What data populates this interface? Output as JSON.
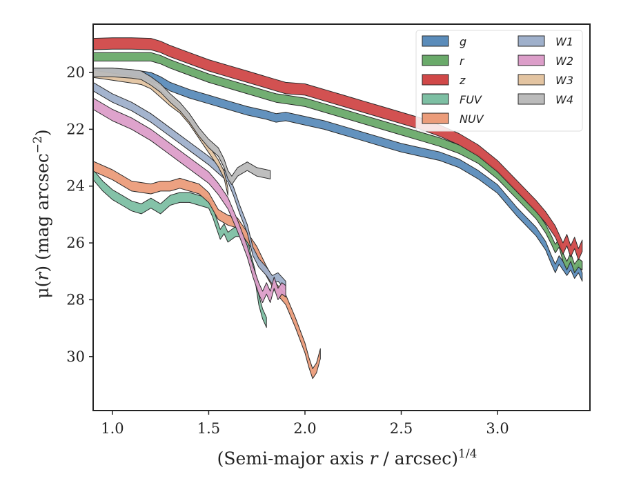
{
  "chart_data": {
    "type": "area",
    "xlabel_main": "(Semi-major axis ",
    "xlabel_var": "r",
    "xlabel_tail": " / arcsec)",
    "xlabel_sup": "1/4",
    "ylabel_pre": "μ(",
    "ylabel_var": "r",
    "ylabel_post": ") (mag arcsec",
    "ylabel_sup": "−2",
    "ylabel_close": ")",
    "xlim": [
      0.9,
      3.48
    ],
    "ylim": [
      31.9,
      18.3
    ],
    "y_inverted": true,
    "xticks": [
      1.0,
      1.5,
      2.0,
      2.5,
      3.0
    ],
    "xtick_labels": [
      "1.0",
      "1.5",
      "2.0",
      "2.5",
      "3.0"
    ],
    "yticks": [
      20,
      22,
      24,
      26,
      28,
      30
    ],
    "ytick_labels": [
      "20",
      "22",
      "24",
      "26",
      "28",
      "30"
    ],
    "grid": false,
    "legend_position": "top-right",
    "legend_columns": 2,
    "series": [
      {
        "name": "g",
        "color": "#5b8cba",
        "x": [
          0.9,
          1.0,
          1.1,
          1.2,
          1.25,
          1.3,
          1.4,
          1.5,
          1.6,
          1.7,
          1.8,
          1.85,
          1.9,
          2.0,
          2.1,
          2.2,
          2.3,
          2.4,
          2.5,
          2.6,
          2.7,
          2.8,
          2.9,
          3.0,
          3.1,
          3.2,
          3.25,
          3.28,
          3.3,
          3.32,
          3.34,
          3.36,
          3.38,
          3.4,
          3.42,
          3.44
        ],
        "y": [
          20.0,
          20.0,
          20.05,
          20.15,
          20.3,
          20.5,
          20.75,
          20.95,
          21.15,
          21.35,
          21.5,
          21.6,
          21.55,
          21.7,
          21.85,
          22.05,
          22.25,
          22.45,
          22.65,
          22.8,
          22.95,
          23.2,
          23.6,
          24.1,
          24.9,
          25.6,
          26.1,
          26.6,
          26.9,
          26.6,
          26.8,
          27.0,
          26.8,
          27.1,
          26.9,
          27.2
        ],
        "w": 0.3
      },
      {
        "name": "r",
        "color": "#6aaa6a",
        "x": [
          0.9,
          1.0,
          1.1,
          1.2,
          1.25,
          1.3,
          1.4,
          1.5,
          1.6,
          1.7,
          1.8,
          1.85,
          1.9,
          2.0,
          2.1,
          2.2,
          2.3,
          2.4,
          2.5,
          2.6,
          2.7,
          2.8,
          2.9,
          3.0,
          3.1,
          3.2,
          3.25,
          3.28,
          3.3,
          3.32,
          3.34,
          3.36,
          3.38,
          3.4,
          3.42,
          3.44
        ],
        "y": [
          19.45,
          19.45,
          19.45,
          19.45,
          19.55,
          19.7,
          19.95,
          20.2,
          20.4,
          20.6,
          20.8,
          20.9,
          20.95,
          21.05,
          21.25,
          21.45,
          21.65,
          21.85,
          22.05,
          22.25,
          22.45,
          22.7,
          23.05,
          23.6,
          24.3,
          25.0,
          25.5,
          25.9,
          26.2,
          26.0,
          26.5,
          26.8,
          26.5,
          26.9,
          26.7,
          26.8
        ],
        "w": 0.3
      },
      {
        "name": "z",
        "color": "#d04848",
        "x": [
          0.9,
          1.0,
          1.1,
          1.2,
          1.25,
          1.3,
          1.4,
          1.5,
          1.6,
          1.7,
          1.8,
          1.85,
          1.9,
          2.0,
          2.1,
          2.2,
          2.3,
          2.4,
          2.5,
          2.6,
          2.7,
          2.8,
          2.9,
          3.0,
          3.1,
          3.2,
          3.25,
          3.28,
          3.3,
          3.32,
          3.34,
          3.36,
          3.38,
          3.4,
          3.42,
          3.44
        ],
        "y": [
          19.0,
          18.98,
          18.98,
          19.0,
          19.1,
          19.25,
          19.5,
          19.75,
          19.95,
          20.15,
          20.35,
          20.45,
          20.55,
          20.6,
          20.8,
          21.0,
          21.2,
          21.4,
          21.6,
          21.8,
          22.05,
          22.35,
          22.75,
          23.3,
          24.0,
          24.7,
          25.1,
          25.4,
          25.6,
          25.9,
          26.2,
          25.9,
          26.3,
          26.0,
          26.4,
          26.1
        ],
        "w": 0.4
      },
      {
        "name": "FUV",
        "color": "#7dbfa3",
        "x": [
          0.9,
          0.95,
          1.0,
          1.05,
          1.1,
          1.15,
          1.2,
          1.25,
          1.3,
          1.35,
          1.4,
          1.45,
          1.5,
          1.52,
          1.54,
          1.56,
          1.58,
          1.6,
          1.62,
          1.64,
          1.66,
          1.68,
          1.7,
          1.72,
          1.74,
          1.76,
          1.78,
          1.8
        ],
        "y": [
          23.6,
          24.0,
          24.3,
          24.5,
          24.7,
          24.8,
          24.6,
          24.8,
          24.5,
          24.4,
          24.4,
          24.5,
          24.6,
          24.9,
          25.3,
          25.7,
          25.5,
          25.8,
          25.7,
          25.6,
          25.6,
          25.9,
          26.0,
          26.6,
          27.1,
          28.0,
          28.5,
          28.8
        ],
        "w": 0.35
      },
      {
        "name": "NUV",
        "color": "#eb9c7a",
        "x": [
          0.9,
          1.0,
          1.1,
          1.2,
          1.25,
          1.3,
          1.35,
          1.4,
          1.45,
          1.5,
          1.55,
          1.6,
          1.65,
          1.7,
          1.75,
          1.8,
          1.85,
          1.9,
          1.95,
          2.0,
          2.02,
          2.04,
          2.06,
          2.08
        ],
        "y": [
          23.3,
          23.6,
          24.0,
          24.1,
          24.0,
          24.0,
          23.9,
          24.0,
          24.1,
          24.4,
          25.0,
          25.2,
          25.3,
          25.8,
          26.3,
          27.0,
          27.6,
          28.0,
          28.8,
          29.7,
          30.2,
          30.6,
          30.4,
          29.9
        ],
        "w": 0.35
      },
      {
        "name": "W1",
        "color": "#9fb0cb",
        "x": [
          0.9,
          1.0,
          1.1,
          1.2,
          1.3,
          1.4,
          1.5,
          1.55,
          1.6,
          1.63,
          1.66,
          1.7,
          1.73,
          1.76,
          1.8,
          1.83,
          1.86,
          1.9
        ],
        "y": [
          20.5,
          20.9,
          21.2,
          21.6,
          22.1,
          22.6,
          23.1,
          23.4,
          23.7,
          24.2,
          24.8,
          25.5,
          26.3,
          26.7,
          27.0,
          27.3,
          27.2,
          27.5
        ],
        "w": 0.3
      },
      {
        "name": "W2",
        "color": "#dc9ec9",
        "x": [
          0.9,
          1.0,
          1.1,
          1.2,
          1.3,
          1.4,
          1.5,
          1.55,
          1.6,
          1.65,
          1.7,
          1.73,
          1.76,
          1.78,
          1.8,
          1.82,
          1.84,
          1.86,
          1.88,
          1.9
        ],
        "y": [
          21.1,
          21.5,
          21.8,
          22.2,
          22.7,
          23.2,
          23.7,
          24.1,
          24.6,
          25.4,
          26.3,
          27.0,
          27.6,
          27.9,
          27.6,
          27.9,
          27.4,
          27.8,
          27.6,
          27.7
        ],
        "w": 0.4
      },
      {
        "name": "W3",
        "color": "#e3c4a1",
        "x": [
          0.9,
          1.0,
          1.1,
          1.15,
          1.2,
          1.25,
          1.3,
          1.35,
          1.4,
          1.45,
          1.5,
          1.55,
          1.58,
          1.6
        ],
        "y": [
          20.05,
          20.15,
          20.25,
          20.3,
          20.45,
          20.75,
          21.05,
          21.3,
          21.7,
          22.2,
          22.7,
          23.2,
          23.6,
          24.2
        ],
        "w": 0.25
      },
      {
        "name": "W4",
        "color": "#bbbbbb",
        "x": [
          0.9,
          1.0,
          1.1,
          1.15,
          1.2,
          1.25,
          1.3,
          1.35,
          1.4,
          1.45,
          1.5,
          1.55,
          1.58,
          1.6,
          1.62,
          1.65,
          1.7,
          1.75,
          1.82
        ],
        "y": [
          20.0,
          20.0,
          20.05,
          20.1,
          20.3,
          20.55,
          20.9,
          21.2,
          21.6,
          22.1,
          22.5,
          22.8,
          23.2,
          23.6,
          23.8,
          23.5,
          23.3,
          23.5,
          23.6
        ],
        "w": 0.3
      }
    ]
  }
}
